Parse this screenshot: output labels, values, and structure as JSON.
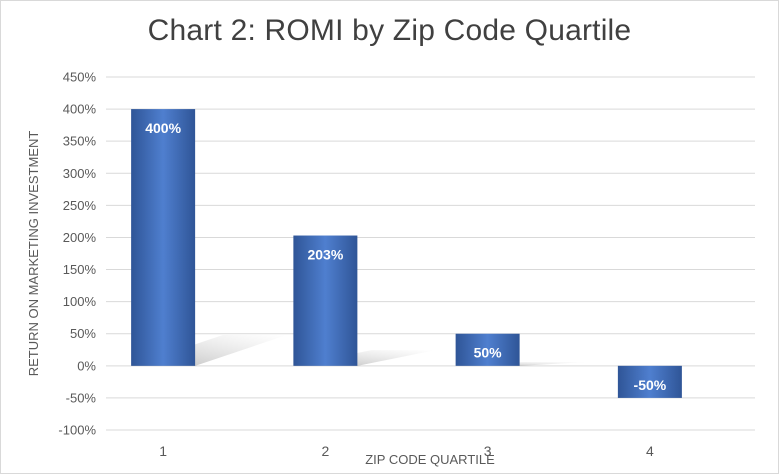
{
  "chart_data": {
    "type": "bar",
    "title": "Chart 2:  ROMI by Zip Code Quartile",
    "xlabel": "ZIP CODE QUARTILE",
    "ylabel": "RETURN ON MARKETING INVESTMENT",
    "categories": [
      "1",
      "2",
      "3",
      "4"
    ],
    "values": [
      400,
      203,
      50,
      -50
    ],
    "data_labels": [
      "400%",
      "203%",
      "50%",
      "-50%"
    ],
    "ylim": [
      -100,
      450
    ],
    "yticks": [
      450,
      400,
      350,
      300,
      250,
      200,
      150,
      100,
      50,
      0,
      -50,
      -100
    ],
    "ytick_labels": [
      "450%",
      "400%",
      "350%",
      "300%",
      "250%",
      "200%",
      "150%",
      "100%",
      "50%",
      "0%",
      "-50%",
      "-100%"
    ],
    "grid": true,
    "legend": "none",
    "bar_color": "#4472c4",
    "bar_color_light": "#4f7fcf",
    "bar_color_dark": "#2f5597",
    "gridline_color": "#d9d9d9",
    "text_color": "#595959"
  }
}
